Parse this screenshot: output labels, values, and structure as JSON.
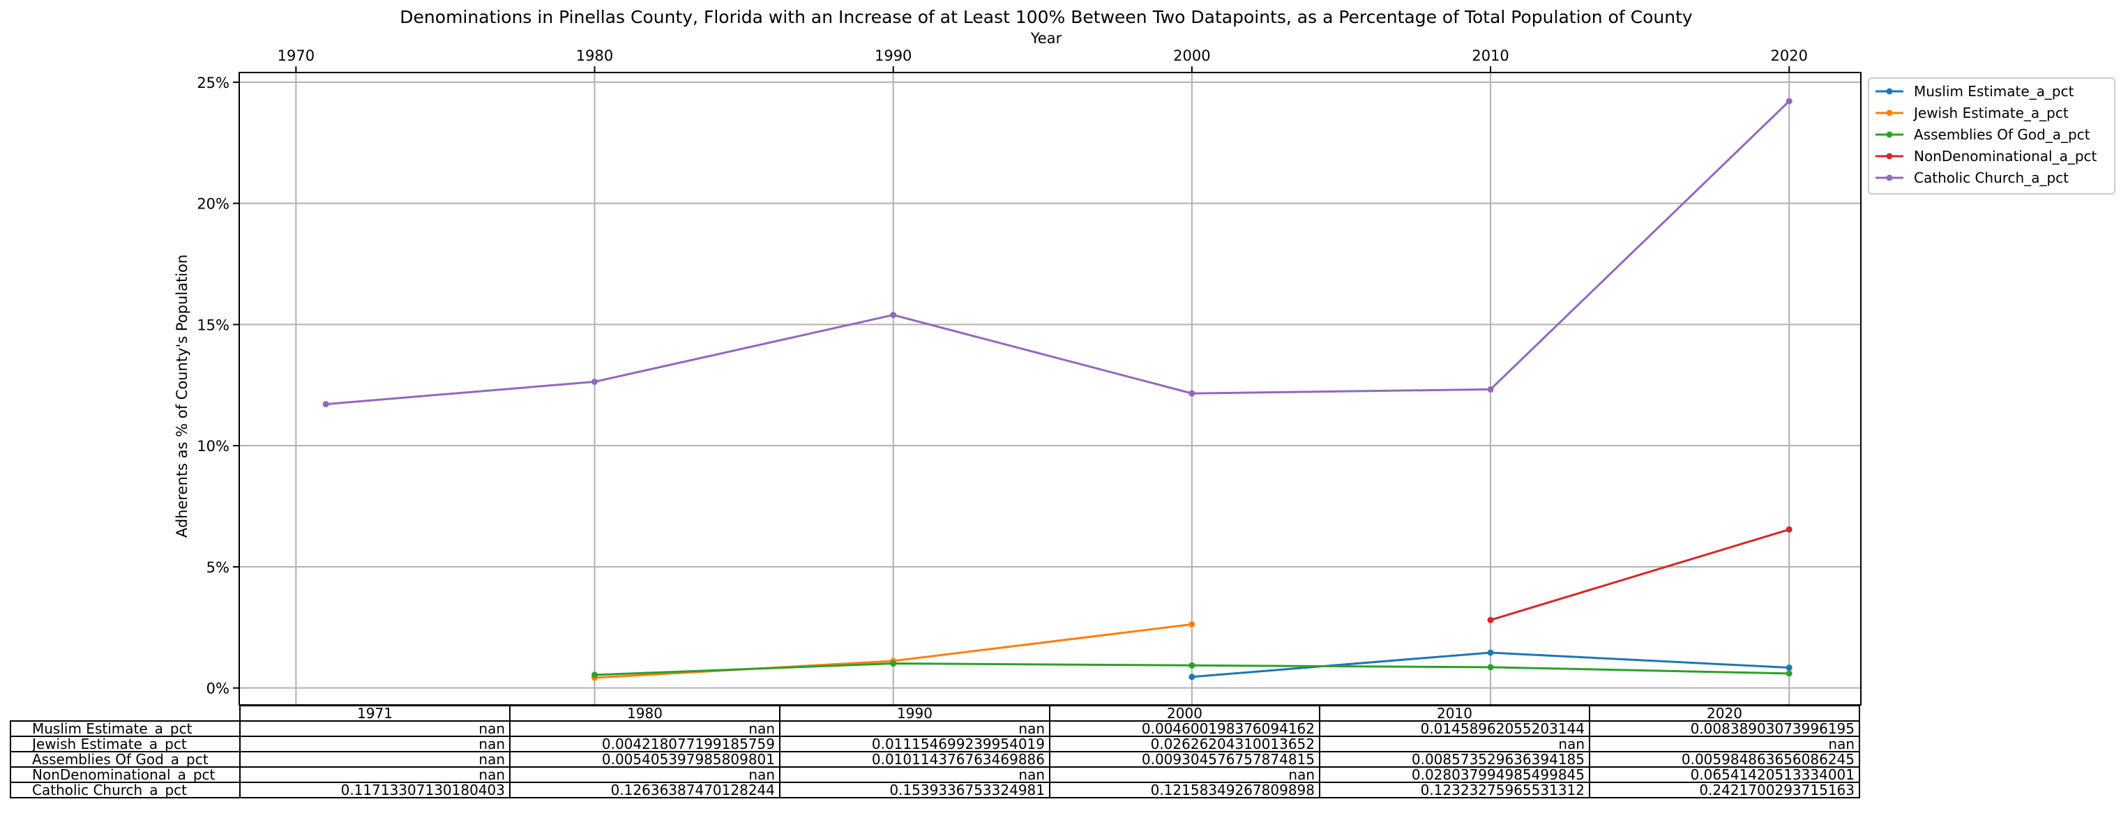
{
  "chart_data": {
    "type": "line",
    "title": "Denominations in Pinellas County, Florida with an Increase of at Least 100% Between Two Datapoints, as a Percentage of Total Population of County",
    "xlabel": "Year",
    "ylabel": "Adherents as % of County's Population",
    "xlim": [
      1968.1,
      2022.4
    ],
    "ylim": [
      -0.7,
      25.4
    ],
    "x_ticks": [
      1970,
      1980,
      1990,
      2000,
      2010,
      2020
    ],
    "y_ticks": [
      0,
      5,
      10,
      15,
      20,
      25
    ],
    "y_tick_labels": [
      "0%",
      "5%",
      "10%",
      "15%",
      "20%",
      "25%"
    ],
    "x_axis_position": "top",
    "grid": true,
    "legend_position": "outside upper right",
    "x": [
      1971,
      1980,
      1990,
      2000,
      2010,
      2020
    ],
    "series": [
      {
        "name": "Muslim Estimate_a_pct",
        "color": "#1f77b4",
        "values": [
          null,
          null,
          null,
          0.4600198376094162,
          1.458962055203144,
          0.838903073996195
        ]
      },
      {
        "name": "Jewish Estimate_a_pct",
        "color": "#ff7f0e",
        "values": [
          null,
          0.4218077199185759,
          1.1154699239954018,
          2.626204310013652,
          null,
          null
        ]
      },
      {
        "name": "Assemblies Of God_a_pct",
        "color": "#2ca02c",
        "values": [
          null,
          0.5405397985809801,
          1.0114376763469886,
          0.9304576757874815,
          0.8573529636394185,
          0.5984863656086244
        ]
      },
      {
        "name": "NonDenominational_a_pct",
        "color": "#d62728",
        "values": [
          null,
          null,
          null,
          null,
          2.8037994985499846,
          6.541420513334001
        ]
      },
      {
        "name": "Catholic Church_a_pct",
        "color": "#9467bd",
        "values": [
          11.713307130180404,
          12.636387470128245,
          15.39336753324981,
          12.158349267809898,
          12.323275965531312,
          24.21700293715163
        ]
      }
    ],
    "table": {
      "columns": [
        "1971",
        "1980",
        "1990",
        "2000",
        "2010",
        "2020"
      ],
      "rows": [
        {
          "label": "Muslim Estimate_a_pct",
          "cells": [
            "nan",
            "nan",
            "nan",
            "0.004600198376094162",
            "0.01458962055203144",
            "0.00838903073996195"
          ]
        },
        {
          "label": "Jewish Estimate_a_pct",
          "cells": [
            "nan",
            "0.004218077199185759",
            "0.011154699239954019",
            "0.02626204310013652",
            "nan",
            "nan"
          ]
        },
        {
          "label": "Assemblies Of God_a_pct",
          "cells": [
            "nan",
            "0.005405397985809801",
            "0.010114376763469886",
            "0.009304576757874815",
            "0.008573529636394185",
            "0.005984863656086245"
          ]
        },
        {
          "label": "NonDenominational_a_pct",
          "cells": [
            "nan",
            "nan",
            "nan",
            "nan",
            "0.028037994985499845",
            "0.06541420513334001"
          ]
        },
        {
          "label": "Catholic Church_a_pct",
          "cells": [
            "0.11713307130180403",
            "0.12636387470128244",
            "0.1539336753324981",
            "0.12158349267809898",
            "0.12323275965531312",
            "0.2421700293715163"
          ]
        }
      ]
    }
  }
}
